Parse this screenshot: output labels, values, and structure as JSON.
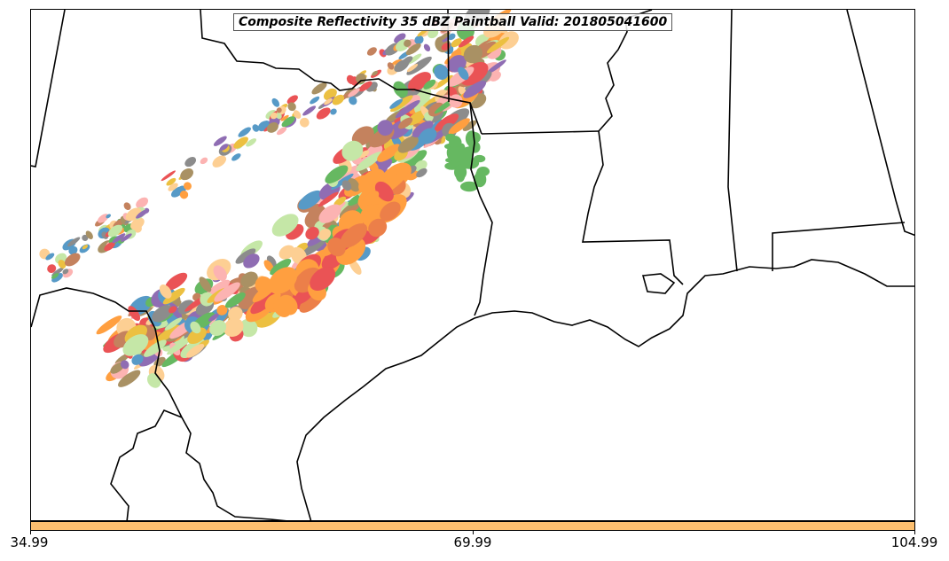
{
  "map": {
    "title": "Composite Reflectivity 35 dBZ Paintball Valid: 201805041600",
    "colorbar": {
      "color": "#fdbf6f",
      "tick_labels": [
        "34.99",
        "69.99",
        "104.99"
      ]
    },
    "paintball_colors": [
      "#33a02c",
      "#e31a1c",
      "#ff7f00",
      "#fdbf6f",
      "#fb9a99",
      "#6a3d9a",
      "#b2df8a",
      "#b15928",
      "#1f78b4",
      "#666666",
      "#e6ab02",
      "#8c6d31"
    ],
    "linework_color": "#000000"
  }
}
